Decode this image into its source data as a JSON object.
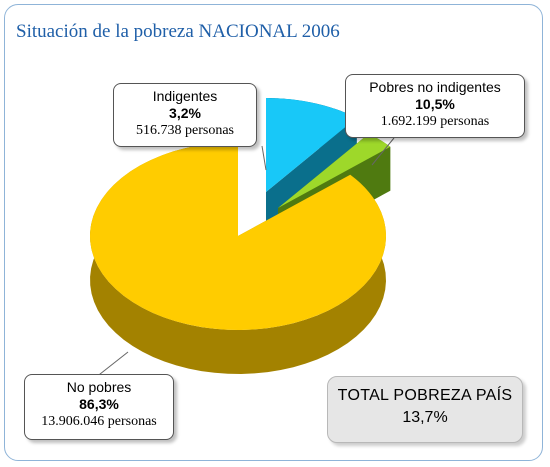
{
  "header": {
    "title": "Situación de la pobreza NACIONAL 2006"
  },
  "chart_data": {
    "type": "pie",
    "slices": [
      {
        "name": "No pobres",
        "percent": "86,3%",
        "value": 86.3,
        "persons": "13.906.046 personas",
        "color": "#ffcc00",
        "side_color": "#a38200"
      },
      {
        "name": "Indigentes",
        "percent": "3,2%",
        "value": 3.2,
        "persons": "516.738 personas",
        "color": "#9ed82a",
        "side_color": "#4f7a10"
      },
      {
        "name": "Pobres no indigentes",
        "percent": "10,5%",
        "value": 10.5,
        "persons": "1.692.199 personas",
        "color": "#18c8f8",
        "side_color": "#0a6f8c"
      }
    ]
  },
  "total_box": {
    "label": "TOTAL POBREZA PAÍS",
    "value": "13,7%"
  }
}
